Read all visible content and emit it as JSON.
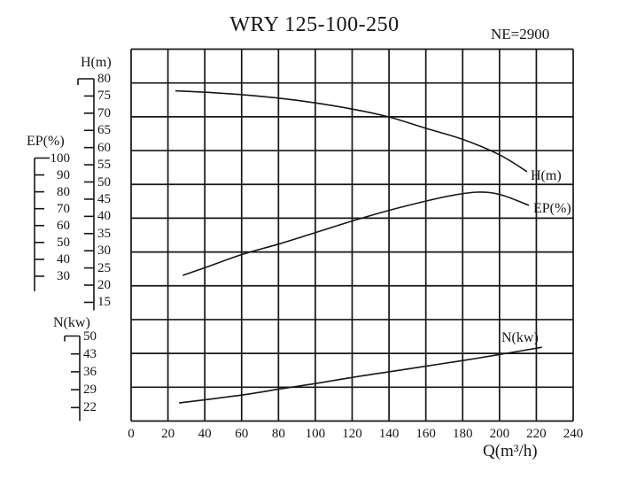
{
  "page": {
    "background": "#ffffff",
    "ink_color": "#161616"
  },
  "header": {
    "title": "WRY 125-100-250",
    "speed_label": "NE=2900"
  },
  "chart_data": {
    "type": "line",
    "title": "WRY 125-100-250",
    "annotation": "NE=2900",
    "grid": {
      "columns": 12,
      "rows": 11,
      "on": true,
      "line_color": "#1a1a1a"
    },
    "x_axis": {
      "label": "Q(m³/h)",
      "range": [
        0,
        240
      ],
      "ticks": [
        0,
        20,
        40,
        60,
        80,
        100,
        120,
        140,
        160,
        180,
        200,
        220,
        240
      ]
    },
    "y_axes": [
      {
        "id": "H",
        "title": "H(m)",
        "ticks": [
          80,
          75,
          70,
          65,
          60,
          55,
          50,
          45,
          40,
          35,
          30,
          25,
          20,
          15
        ]
      },
      {
        "id": "EP",
        "title": "EP(%)",
        "ticks": [
          100,
          90,
          80,
          70,
          60,
          50,
          40,
          30
        ]
      },
      {
        "id": "N",
        "title": "N(kw)",
        "ticks": [
          50,
          43,
          36,
          29,
          22
        ]
      }
    ],
    "series": [
      {
        "name": "H(m)",
        "axis": "H",
        "points": [
          [
            24,
            76.5
          ],
          [
            40,
            76.1
          ],
          [
            60,
            75.4
          ],
          [
            80,
            74.4
          ],
          [
            100,
            73.0
          ],
          [
            120,
            71.2
          ],
          [
            140,
            68.9
          ],
          [
            160,
            65.6
          ],
          [
            180,
            62.4
          ],
          [
            200,
            57.9
          ],
          [
            215,
            53.0
          ]
        ]
      },
      {
        "name": "EP(%)",
        "axis": "EP",
        "points": [
          [
            28,
            30.5
          ],
          [
            40,
            35.0
          ],
          [
            60,
            42.8
          ],
          [
            80,
            49.0
          ],
          [
            100,
            55.8
          ],
          [
            120,
            62.7
          ],
          [
            140,
            69.0
          ],
          [
            160,
            74.5
          ],
          [
            175,
            78.0
          ],
          [
            188,
            79.8
          ],
          [
            200,
            78.5
          ],
          [
            216,
            72.0
          ]
        ]
      },
      {
        "name": "N(kw)",
        "axis": "N",
        "points": [
          [
            26,
            23.8
          ],
          [
            60,
            26.9
          ],
          [
            81,
            29.3
          ],
          [
            100,
            31.4
          ],
          [
            120,
            33.8
          ],
          [
            140,
            36.0
          ],
          [
            160,
            38.2
          ],
          [
            180,
            40.4
          ],
          [
            198,
            42.5
          ],
          [
            223,
            45.6
          ]
        ]
      }
    ]
  }
}
